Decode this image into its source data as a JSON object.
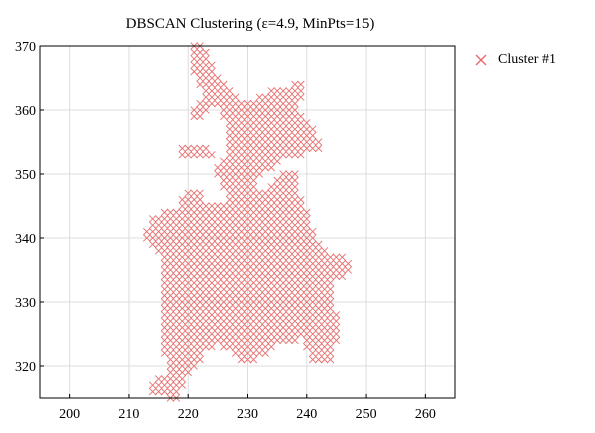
{
  "chart_data": {
    "type": "scatter",
    "title": "DBSCAN Clustering (ε=4.9, MinPts=15)",
    "xlabel": "",
    "ylabel": "",
    "xlim": [
      195,
      265
    ],
    "ylim": [
      315,
      370
    ],
    "x_ticks": [
      200,
      210,
      220,
      230,
      240,
      250,
      260
    ],
    "y_ticks": [
      320,
      330,
      340,
      350,
      360,
      370
    ],
    "grid": true,
    "legend_position": "top-right outside",
    "point_step": 1,
    "series": [
      {
        "name": "Cluster #1",
        "color": "#e86f6f",
        "marker": "x",
        "region_rows": [
          {
            "y": 370,
            "spans": [
              [
                221,
                222
              ]
            ]
          },
          {
            "y": 369,
            "spans": [
              [
                221,
                223
              ]
            ]
          },
          {
            "y": 368,
            "spans": [
              [
                221,
                223
              ]
            ]
          },
          {
            "y": 367,
            "spans": [
              [
                221,
                224
              ]
            ]
          },
          {
            "y": 366,
            "spans": [
              [
                221,
                224
              ]
            ]
          },
          {
            "y": 365,
            "spans": [
              [
                222,
                225
              ]
            ]
          },
          {
            "y": 364,
            "spans": [
              [
                222,
                226
              ],
              [
                238,
                239
              ]
            ]
          },
          {
            "y": 363,
            "spans": [
              [
                223,
                227
              ],
              [
                234,
                239
              ]
            ]
          },
          {
            "y": 362,
            "spans": [
              [
                223,
                228
              ],
              [
                232,
                239
              ]
            ]
          },
          {
            "y": 361,
            "spans": [
              [
                222,
                224
              ],
              [
                225,
                238
              ]
            ]
          },
          {
            "y": 360,
            "spans": [
              [
                221,
                223
              ],
              [
                226,
                238
              ]
            ]
          },
          {
            "y": 359,
            "spans": [
              [
                221,
                222
              ],
              [
                226,
                239
              ]
            ]
          },
          {
            "y": 358,
            "spans": [
              [
                227,
                240
              ]
            ]
          },
          {
            "y": 357,
            "spans": [
              [
                227,
                241
              ]
            ]
          },
          {
            "y": 356,
            "spans": [
              [
                227,
                241
              ]
            ]
          },
          {
            "y": 355,
            "spans": [
              [
                227,
                242
              ]
            ]
          },
          {
            "y": 354,
            "spans": [
              [
                219,
                223
              ],
              [
                227,
                242
              ]
            ]
          },
          {
            "y": 353,
            "spans": [
              [
                219,
                224
              ],
              [
                227,
                239
              ]
            ]
          },
          {
            "y": 352,
            "spans": [
              [
                226,
                235
              ]
            ]
          },
          {
            "y": 351,
            "spans": [
              [
                225,
                234
              ]
            ]
          },
          {
            "y": 350,
            "spans": [
              [
                225,
                232
              ],
              [
                236,
                238
              ]
            ]
          },
          {
            "y": 349,
            "spans": [
              [
                226,
                231
              ],
              [
                235,
                238
              ]
            ]
          },
          {
            "y": 348,
            "spans": [
              [
                226,
                231
              ],
              [
                234,
                238
              ]
            ]
          },
          {
            "y": 347,
            "spans": [
              [
                220,
                222
              ],
              [
                227,
                238
              ]
            ]
          },
          {
            "y": 346,
            "spans": [
              [
                219,
                222
              ],
              [
                227,
                239
              ]
            ]
          },
          {
            "y": 345,
            "spans": [
              [
                219,
                239
              ]
            ]
          },
          {
            "y": 344,
            "spans": [
              [
                216,
                218
              ],
              [
                219,
                240
              ]
            ]
          },
          {
            "y": 343,
            "spans": [
              [
                214,
                240
              ]
            ]
          },
          {
            "y": 342,
            "spans": [
              [
                214,
                240
              ]
            ]
          },
          {
            "y": 341,
            "spans": [
              [
                213,
                241
              ]
            ]
          },
          {
            "y": 340,
            "spans": [
              [
                213,
                241
              ]
            ]
          },
          {
            "y": 339,
            "spans": [
              [
                214,
                242
              ]
            ]
          },
          {
            "y": 338,
            "spans": [
              [
                215,
                243
              ]
            ]
          },
          {
            "y": 337,
            "spans": [
              [
                216,
                246
              ]
            ]
          },
          {
            "y": 336,
            "spans": [
              [
                216,
                247
              ]
            ]
          },
          {
            "y": 335,
            "spans": [
              [
                216,
                247
              ]
            ]
          },
          {
            "y": 334,
            "spans": [
              [
                216,
                246
              ]
            ]
          },
          {
            "y": 333,
            "spans": [
              [
                216,
                244
              ]
            ]
          },
          {
            "y": 332,
            "spans": [
              [
                216,
                244
              ]
            ]
          },
          {
            "y": 331,
            "spans": [
              [
                216,
                244
              ]
            ]
          },
          {
            "y": 330,
            "spans": [
              [
                216,
                244
              ]
            ]
          },
          {
            "y": 329,
            "spans": [
              [
                216,
                244
              ]
            ]
          },
          {
            "y": 328,
            "spans": [
              [
                216,
                245
              ]
            ]
          },
          {
            "y": 327,
            "spans": [
              [
                216,
                245
              ]
            ]
          },
          {
            "y": 326,
            "spans": [
              [
                216,
                245
              ]
            ]
          },
          {
            "y": 325,
            "spans": [
              [
                216,
                245
              ]
            ]
          },
          {
            "y": 324,
            "spans": [
              [
                216,
                238
              ],
              [
                240,
                245
              ]
            ]
          },
          {
            "y": 323,
            "spans": [
              [
                216,
                224
              ],
              [
                226,
                234
              ],
              [
                240,
                244
              ]
            ]
          },
          {
            "y": 322,
            "spans": [
              [
                216,
                222
              ],
              [
                228,
                233
              ],
              [
                241,
                244
              ]
            ]
          },
          {
            "y": 321,
            "spans": [
              [
                217,
                222
              ],
              [
                229,
                231
              ],
              [
                241,
                244
              ]
            ]
          },
          {
            "y": 320,
            "spans": [
              [
                217,
                221
              ]
            ]
          },
          {
            "y": 319,
            "spans": [
              [
                217,
                220
              ]
            ]
          },
          {
            "y": 318,
            "spans": [
              [
                215,
                219
              ]
            ]
          },
          {
            "y": 317,
            "spans": [
              [
                214,
                219
              ]
            ]
          },
          {
            "y": 316,
            "spans": [
              [
                214,
                218
              ]
            ]
          },
          {
            "y": 315,
            "spans": [
              [
                217,
                218
              ]
            ]
          }
        ]
      }
    ]
  }
}
